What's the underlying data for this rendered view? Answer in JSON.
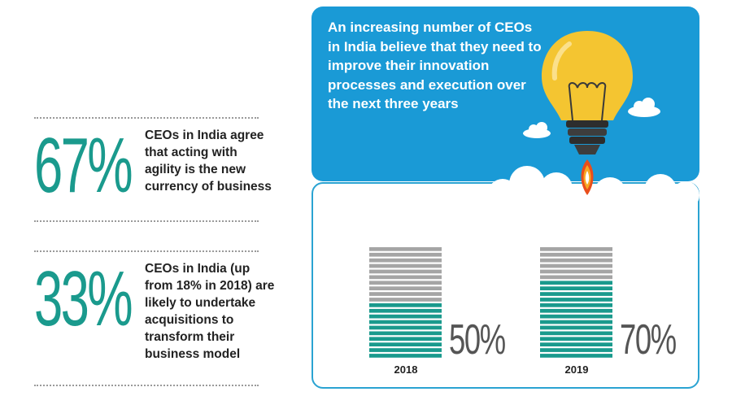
{
  "stats": [
    {
      "percent": "67%",
      "text": "CEOs in India agree that acting with agility is the new currency of business"
    },
    {
      "percent": "33%",
      "text": "CEOs in India (up from 18% in 2018) are likely to undertake acquisitions to transform their business model"
    }
  ],
  "headline": "An increasing number of CEOs in India believe that they need to improve their innovation processes and execution over the next three years",
  "chart_data": {
    "type": "bar",
    "categories": [
      "2018",
      "2019"
    ],
    "values": [
      50,
      70
    ],
    "value_labels": [
      "50%",
      "70%"
    ],
    "ylim": [
      0,
      100
    ],
    "colors": {
      "filled": "#1a9a8d",
      "empty": "#a5a5a5"
    }
  },
  "colors": {
    "accent": "#1a9a8d",
    "panel_blue": "#1a9ad6",
    "bulb": "#f4c531"
  },
  "icons": [
    "lightbulb-rocket-icon",
    "cloud-icon"
  ]
}
